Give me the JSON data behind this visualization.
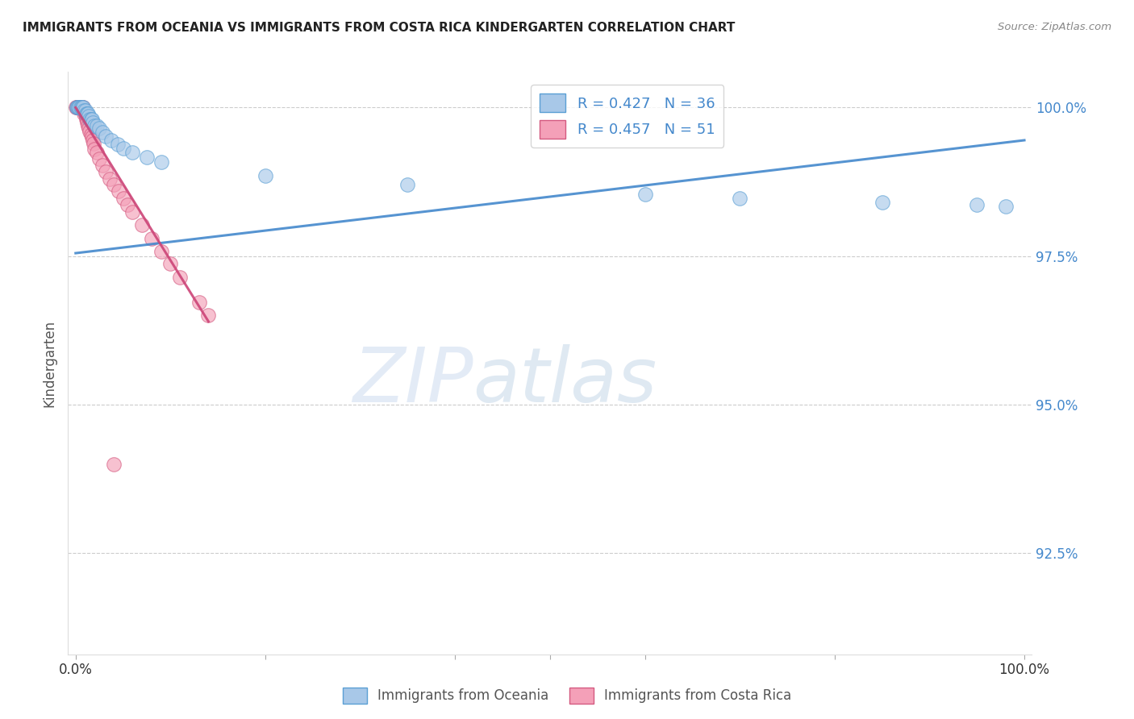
{
  "title": "IMMIGRANTS FROM OCEANIA VS IMMIGRANTS FROM COSTA RICA KINDERGARTEN CORRELATION CHART",
  "source": "Source: ZipAtlas.com",
  "ylabel": "Kindergarten",
  "y_tick_labels": [
    "92.5%",
    "95.0%",
    "97.5%",
    "100.0%"
  ],
  "y_tick_values": [
    0.925,
    0.95,
    0.975,
    1.0
  ],
  "xlim": [
    0.0,
    1.0
  ],
  "ylim": [
    0.908,
    1.006
  ],
  "legend_r1": "R = 0.427",
  "legend_n1": "N = 36",
  "legend_r2": "R = 0.457",
  "legend_n2": "N = 51",
  "watermark_zip": "ZIP",
  "watermark_atlas": "atlas",
  "blue_fill": "#a8c8e8",
  "blue_edge": "#5a9fd4",
  "pink_fill": "#f4a0b8",
  "pink_edge": "#d45a80",
  "blue_line": "#4488cc",
  "pink_line": "#cc4477",
  "oceania_x": [
    0.001,
    0.002,
    0.003,
    0.004,
    0.005,
    0.006,
    0.007,
    0.008,
    0.009,
    0.01,
    0.011,
    0.012,
    0.013,
    0.014,
    0.015,
    0.016,
    0.017,
    0.018,
    0.02,
    0.022,
    0.025,
    0.028,
    0.032,
    0.038,
    0.044,
    0.05,
    0.06,
    0.075,
    0.09,
    0.2,
    0.35,
    0.6,
    0.7,
    0.85,
    0.95,
    0.98
  ],
  "oceania_y": [
    1.0,
    1.0,
    1.0,
    1.0,
    1.0,
    1.0,
    1.0,
    1.0,
    0.9995,
    0.9995,
    0.999,
    0.999,
    0.999,
    0.9985,
    0.998,
    0.998,
    0.998,
    0.9975,
    0.997,
    0.997,
    0.9965,
    0.9958,
    0.9952,
    0.9945,
    0.9938,
    0.9932,
    0.9924,
    0.9916,
    0.9908,
    0.9885,
    0.987,
    0.9854,
    0.9847,
    0.984,
    0.9836,
    0.9834
  ],
  "costarica_x": [
    0.0005,
    0.001,
    0.0015,
    0.002,
    0.002,
    0.003,
    0.003,
    0.004,
    0.004,
    0.005,
    0.005,
    0.006,
    0.006,
    0.007,
    0.007,
    0.008,
    0.008,
    0.009,
    0.009,
    0.01,
    0.01,
    0.011,
    0.011,
    0.012,
    0.012,
    0.013,
    0.014,
    0.015,
    0.016,
    0.017,
    0.018,
    0.019,
    0.02,
    0.022,
    0.025,
    0.028,
    0.032,
    0.036,
    0.04,
    0.045,
    0.05,
    0.055,
    0.06,
    0.07,
    0.08,
    0.09,
    0.1,
    0.11,
    0.13,
    0.14,
    0.04
  ],
  "costarica_y": [
    1.0,
    1.0,
    1.0,
    1.0,
    1.0,
    1.0,
    1.0,
    1.0,
    1.0,
    1.0,
    1.0,
    1.0,
    1.0,
    1.0,
    1.0,
    1.0,
    0.9995,
    0.9995,
    0.999,
    0.999,
    0.999,
    0.9985,
    0.998,
    0.998,
    0.9975,
    0.997,
    0.9965,
    0.996,
    0.9955,
    0.995,
    0.9945,
    0.994,
    0.993,
    0.9924,
    0.9914,
    0.9903,
    0.9892,
    0.988,
    0.987,
    0.986,
    0.9848,
    0.9836,
    0.9824,
    0.9802,
    0.978,
    0.9758,
    0.9737,
    0.9715,
    0.9673,
    0.965,
    0.94
  ],
  "blue_trend_x": [
    0.0,
    1.0
  ],
  "blue_trend_y": [
    0.9755,
    0.9945
  ],
  "pink_trend_x": [
    0.0,
    0.14
  ],
  "pink_trend_y": [
    1.0,
    0.964
  ]
}
